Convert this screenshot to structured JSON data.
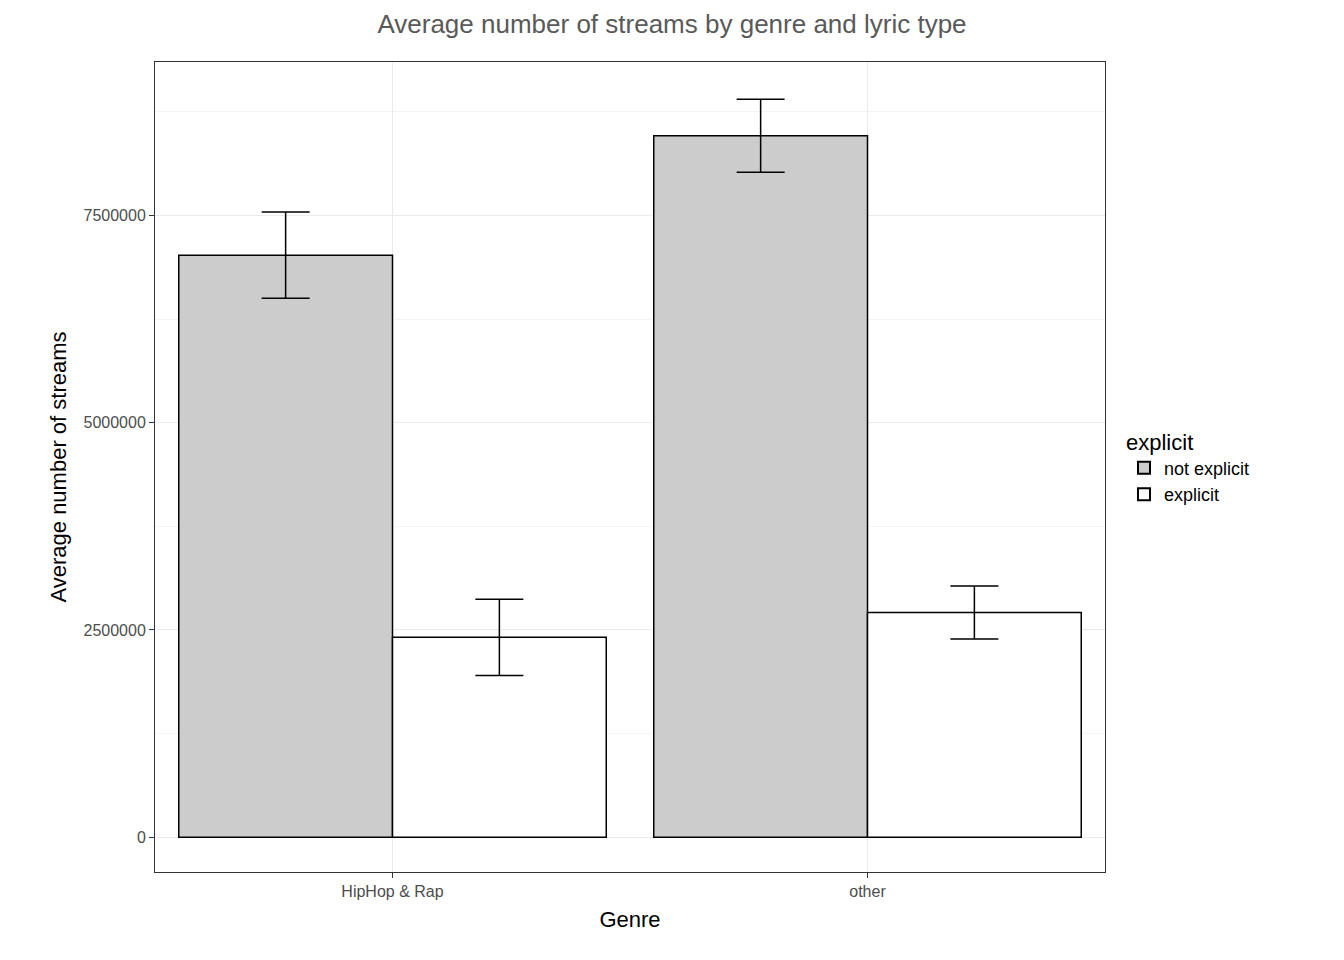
{
  "chart_data": {
    "type": "bar",
    "title": "Average number of streams by genre and lyric type",
    "x_label": "Genre",
    "y_label": "Average number of streams",
    "categories": [
      "HipHop & Rap",
      "other"
    ],
    "legend_title": "explicit",
    "series": [
      {
        "name": "not explicit",
        "color": "#cccccc",
        "values": [
          7020000,
          8460000
        ],
        "errors": [
          520000,
          440000
        ]
      },
      {
        "name": "explicit",
        "color": "#ffffff",
        "values": [
          2410000,
          2710000
        ],
        "errors": [
          460000,
          320000
        ]
      }
    ],
    "ylim": [
      -420000,
      9350000
    ],
    "yticks": [
      0,
      2500000,
      5000000,
      7500000
    ],
    "grid": true,
    "legend": "right"
  }
}
